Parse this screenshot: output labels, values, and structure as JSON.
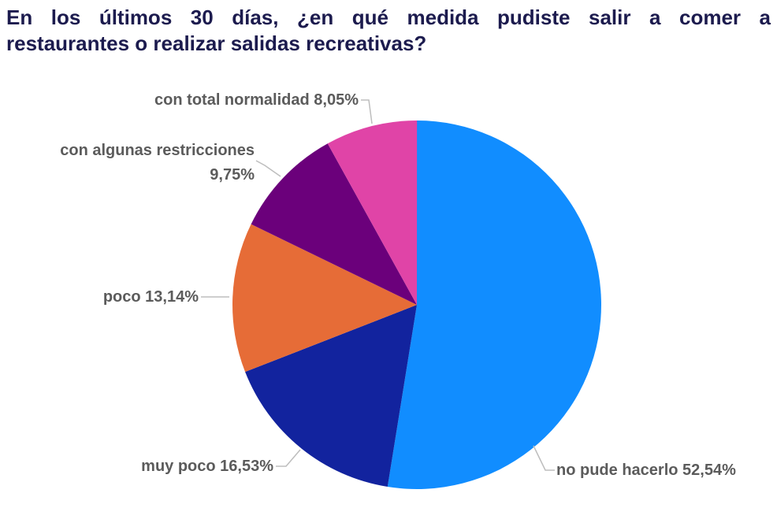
{
  "title": {
    "text": "En los últimos 30 días, ¿en qué medida pudiste salir a comer a restaurantes o realizar salidas recreativas?",
    "line1": "En los últimos 30 días, ¿en qué medida pudiste salir a comer a",
    "line2": "restaurantes o realizar salidas recreativas?",
    "color": "#1C1B4E"
  },
  "chart_data": {
    "type": "pie",
    "title": "En los últimos 30 días, ¿en qué medida pudiste salir a comer a restaurantes o realizar salidas recreativas?",
    "legend": "none",
    "start_angle_deg": 0,
    "direction": "clockwise",
    "value_format": "percent, comma decimal separator",
    "slices": [
      {
        "label": "no pude hacerlo",
        "value": 52.54,
        "display": "no pude hacerlo 52,54%",
        "color": "#118DFF"
      },
      {
        "label": "muy poco",
        "value": 16.53,
        "display": "muy poco 16,53%",
        "color": "#12239E"
      },
      {
        "label": "poco",
        "value": 13.14,
        "display": "poco 13,14%",
        "color": "#E66C37"
      },
      {
        "label": "con algunas restricciones",
        "value": 9.75,
        "display": "con algunas restricciones 9,75%",
        "color": "#6B007B"
      },
      {
        "label": "con total normalidad",
        "value": 8.05,
        "display": "con total normalidad 8,05%",
        "color": "#E044A7"
      }
    ]
  },
  "colors": {
    "background": "#FFFFFF",
    "title_text": "#1C1B4E",
    "label_text": "#5B5B5B",
    "leader_line": "#BDBDBD"
  }
}
